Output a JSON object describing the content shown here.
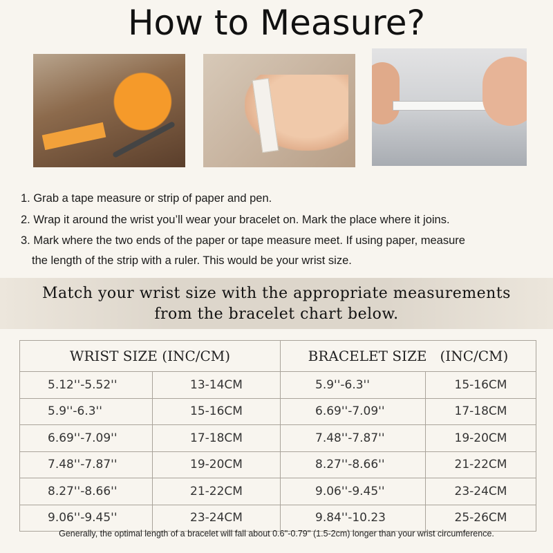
{
  "title": "How to Measure?",
  "photos": [
    {
      "subject": "tape-measure-and-pen"
    },
    {
      "subject": "tape-around-wrist"
    },
    {
      "subject": "paper-strip-held-by-hands"
    }
  ],
  "steps": [
    "1. Grab a tape measure or strip of paper and pen.",
    "2. Wrap it around the wrist you’ll wear your bracelet on. Mark the place where it joins.",
    "3. Mark where the two ends of the paper or tape measure meet. If using paper, measure",
    "the length of the strip with a ruler. This would be your wrist size."
  ],
  "banner": {
    "line1": "Match your wrist size with the appropriate measurements",
    "line2": "from the bracelet chart below."
  },
  "table": {
    "headers": [
      "WRIST SIZE (INC/CM)",
      "BRACELET SIZE   (INC/CM)"
    ],
    "rows": [
      [
        "5.12''-5.52''",
        "13-14CM",
        "5.9''-6.3''",
        "15-16CM"
      ],
      [
        "5.9''-6.3''",
        "15-16CM",
        "6.69''-7.09''",
        "17-18CM"
      ],
      [
        "6.69''-7.09''",
        "17-18CM",
        "7.48''-7.87''",
        "19-20CM"
      ],
      [
        "7.48''-7.87''",
        "19-20CM",
        "8.27''-8.66''",
        "21-22CM"
      ],
      [
        "8.27''-8.66''",
        "21-22CM",
        "9.06''-9.45''",
        "23-24CM"
      ],
      [
        "9.06''-9.45''",
        "23-24CM",
        "9.84''-10.23",
        "25-26CM"
      ]
    ]
  },
  "footer": "Generally, the optimal length of a bracelet will fall about 0.6''-0.79'' (1.5-2cm) longer than your wrist circumference."
}
